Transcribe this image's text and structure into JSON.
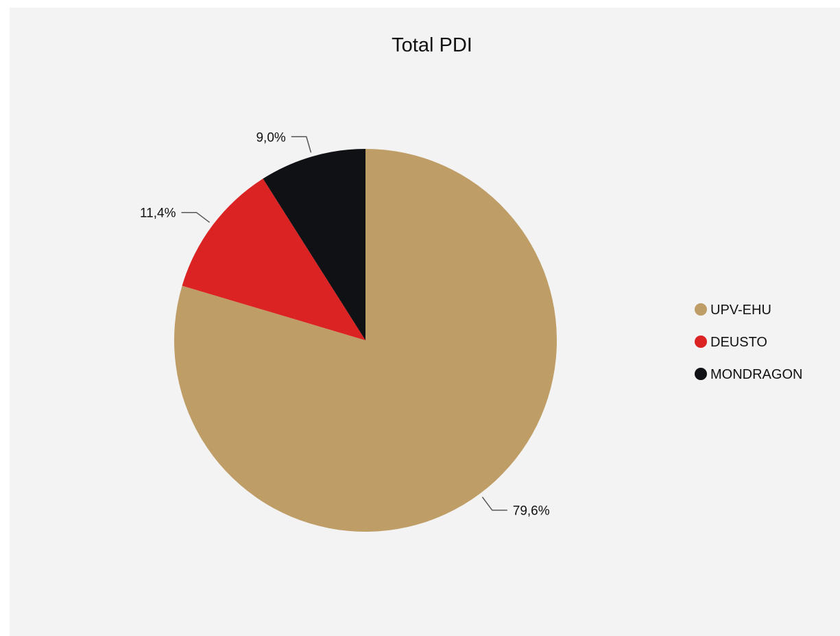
{
  "chart_data": {
    "type": "pie",
    "title": "Total PDI",
    "categories": [
      "UPV-EHU",
      "DEUSTO",
      "MONDRAGON"
    ],
    "values": [
      79.6,
      11.4,
      9.0
    ],
    "value_labels": [
      "79,6%",
      "11,4%",
      "9,0%"
    ],
    "colors": [
      "#bf9d66",
      "#dc2323",
      "#0f1115"
    ],
    "legend": {
      "placement": "right",
      "entries": [
        "UPV-EHU",
        "DEUSTO",
        "MONDRAGON"
      ]
    },
    "start_angle": "12 o'clock",
    "direction": "clockwise"
  }
}
